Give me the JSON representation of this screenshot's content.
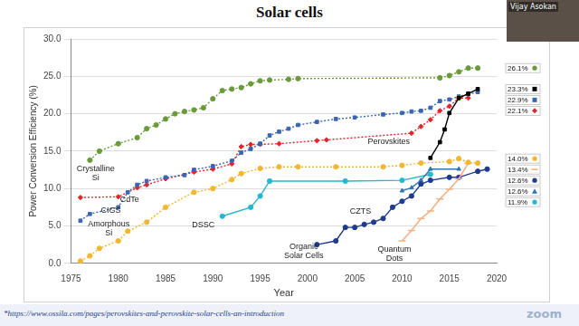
{
  "slide": {
    "title": "Solar cells",
    "footnote": "*https://www.ossila.com/pages/perovskites-and-perovskite-solar-cells-an-introduction",
    "presenter": "Vijay Asokan",
    "watermark": "zoom"
  },
  "chart_data": {
    "type": "line",
    "xlabel": "Year",
    "ylabel": "Power Conversion Efficiency (%)",
    "xlim": [
      1975,
      2020
    ],
    "xticks": [
      1975,
      1980,
      1985,
      1990,
      1995,
      2000,
      2005,
      2010,
      2015,
      2020
    ],
    "ylim": [
      0,
      30
    ],
    "yticks": [
      {
        "value": 0,
        "label": "0.0"
      },
      {
        "value": 5,
        "label": "5.0"
      },
      {
        "value": 10,
        "label": "10.0"
      },
      {
        "value": 15,
        "label": "15.0"
      },
      {
        "value": 20,
        "label": "20.0"
      },
      {
        "value": 25,
        "label": "25.0"
      },
      {
        "value": 30,
        "label": "30.0"
      }
    ],
    "grid": true,
    "series": [
      {
        "name": "Crystalline Si",
        "color": "#6a9a3a",
        "marker": "circle",
        "line_style": "dotted",
        "x": [
          1977,
          1978,
          1980,
          1982,
          1983,
          1984,
          1985,
          1986,
          1987,
          1988,
          1989,
          1990,
          1991,
          1992,
          1993,
          1994,
          1995,
          1996,
          1998,
          1999,
          2014,
          2015,
          2016,
          2017,
          2018
        ],
        "values": [
          13.8,
          15.0,
          16.0,
          16.8,
          18.0,
          18.5,
          19.3,
          20.0,
          20.3,
          20.5,
          20.8,
          22.0,
          23.1,
          23.3,
          23.5,
          24.0,
          24.4,
          24.5,
          24.6,
          24.7,
          24.8,
          25.1,
          25.6,
          26.1,
          26.1
        ],
        "record": {
          "value": 26.1,
          "label": "26.1%"
        }
      },
      {
        "name": "Perovskites",
        "color": "#000000",
        "marker": "square",
        "line_style": "solid",
        "x": [
          2013,
          2014,
          2014.5,
          2015,
          2016,
          2017,
          2018
        ],
        "values": [
          14.1,
          16.2,
          17.9,
          20.1,
          22.1,
          22.7,
          23.3
        ],
        "record": {
          "value": 23.3,
          "label": "23.3%"
        }
      },
      {
        "name": "CIGS",
        "color": "#3a65b0",
        "marker": "square",
        "line_style": "dotted",
        "x": [
          1976,
          1977,
          1980,
          1981,
          1982,
          1983,
          1985,
          1987,
          1988,
          1990,
          1992,
          1993,
          1994,
          1995,
          1996,
          1997,
          1998,
          1999,
          2001,
          2003,
          2005,
          2008,
          2010,
          2011,
          2012,
          2013,
          2014,
          2015,
          2016,
          2017,
          2018
        ],
        "values": [
          5.7,
          6.6,
          7.5,
          9.5,
          10.5,
          11.0,
          11.5,
          11.8,
          12.5,
          13.0,
          13.7,
          14.8,
          15.3,
          16.0,
          17.1,
          17.6,
          18.0,
          18.5,
          18.9,
          19.3,
          19.5,
          19.9,
          20.1,
          20.3,
          20.4,
          20.8,
          21.7,
          21.9,
          22.3,
          22.6,
          22.9
        ],
        "record": {
          "value": 22.9,
          "label": "22.9%"
        }
      },
      {
        "name": "CdTe",
        "color": "#e0262a",
        "marker": "diamond",
        "line_style": "dotted",
        "x": [
          1976,
          1980,
          1982,
          1983,
          1985,
          1988,
          1990,
          1992,
          1993,
          1994,
          1995,
          1997,
          2001,
          2002,
          2011,
          2012,
          2013,
          2014,
          2015,
          2016,
          2017
        ],
        "values": [
          8.8,
          8.9,
          10.1,
          10.5,
          11.3,
          12.2,
          12.6,
          13.3,
          15.6,
          15.9,
          15.9,
          16.0,
          16.4,
          16.5,
          17.4,
          18.3,
          19.2,
          20.4,
          21.0,
          22.1,
          22.1
        ],
        "record": {
          "value": 22.1,
          "label": "22.1%"
        }
      },
      {
        "name": "Amorphous Si",
        "color": "#f2b632",
        "marker": "circle",
        "line_style": "dotted",
        "x": [
          1976,
          1977,
          1978,
          1980,
          1981,
          1983,
          1985,
          1988,
          1990,
          1992,
          1993,
          1995,
          1997,
          1999,
          2003,
          2008,
          2010,
          2012,
          2015,
          2016,
          2017,
          2018
        ],
        "values": [
          0.3,
          1.0,
          2.0,
          3.0,
          4.3,
          5.5,
          7.5,
          9.5,
          10.0,
          11.2,
          12.0,
          12.7,
          12.9,
          12.9,
          12.9,
          12.9,
          13.1,
          13.4,
          13.6,
          14.0,
          13.5,
          13.4
        ],
        "record": {
          "value": 14.0,
          "label": "14.0%"
        }
      },
      {
        "name": "Quantum Dots",
        "color": "#f4b183",
        "marker": "dash",
        "line_style": "solid",
        "x": [
          2010,
          2011,
          2012,
          2013,
          2014,
          2015,
          2016,
          2017
        ],
        "values": [
          3.0,
          4.4,
          6.0,
          7.0,
          8.6,
          9.9,
          11.3,
          13.4
        ],
        "record": {
          "value": 13.4,
          "label": "13.4%"
        }
      },
      {
        "name": "Organic Solar Cells",
        "color": "#1f3b8c",
        "marker": "circle",
        "line_style": "solid",
        "x": [
          2001,
          2003,
          2004,
          2005,
          2006,
          2007,
          2008,
          2009,
          2010,
          2011,
          2012,
          2013,
          2015,
          2016,
          2018,
          2019
        ],
        "values": [
          2.5,
          3.0,
          4.8,
          4.8,
          5.2,
          5.5,
          6.0,
          7.5,
          8.3,
          9.0,
          10.6,
          11.1,
          11.5,
          11.5,
          12.3,
          12.6
        ],
        "record": {
          "value": 12.6,
          "label": "12.6%"
        }
      },
      {
        "name": "CZTS",
        "color": "#2e75b6",
        "marker": "triangle",
        "line_style": "solid",
        "x": [
          2010,
          2011,
          2012,
          2013,
          2016
        ],
        "values": [
          9.7,
          10.1,
          11.1,
          12.6,
          12.6
        ],
        "record": {
          "value": 12.6,
          "label": "12.6%"
        }
      },
      {
        "name": "DSSC",
        "color": "#25b8cf",
        "marker": "circle",
        "line_style": "solid",
        "x": [
          1991,
          1994,
          1995,
          1996,
          2004,
          2010,
          2013
        ],
        "values": [
          6.3,
          7.5,
          9.0,
          11.0,
          11.0,
          11.1,
          11.9
        ],
        "record": {
          "value": 11.9,
          "label": "11.9%"
        }
      }
    ]
  }
}
